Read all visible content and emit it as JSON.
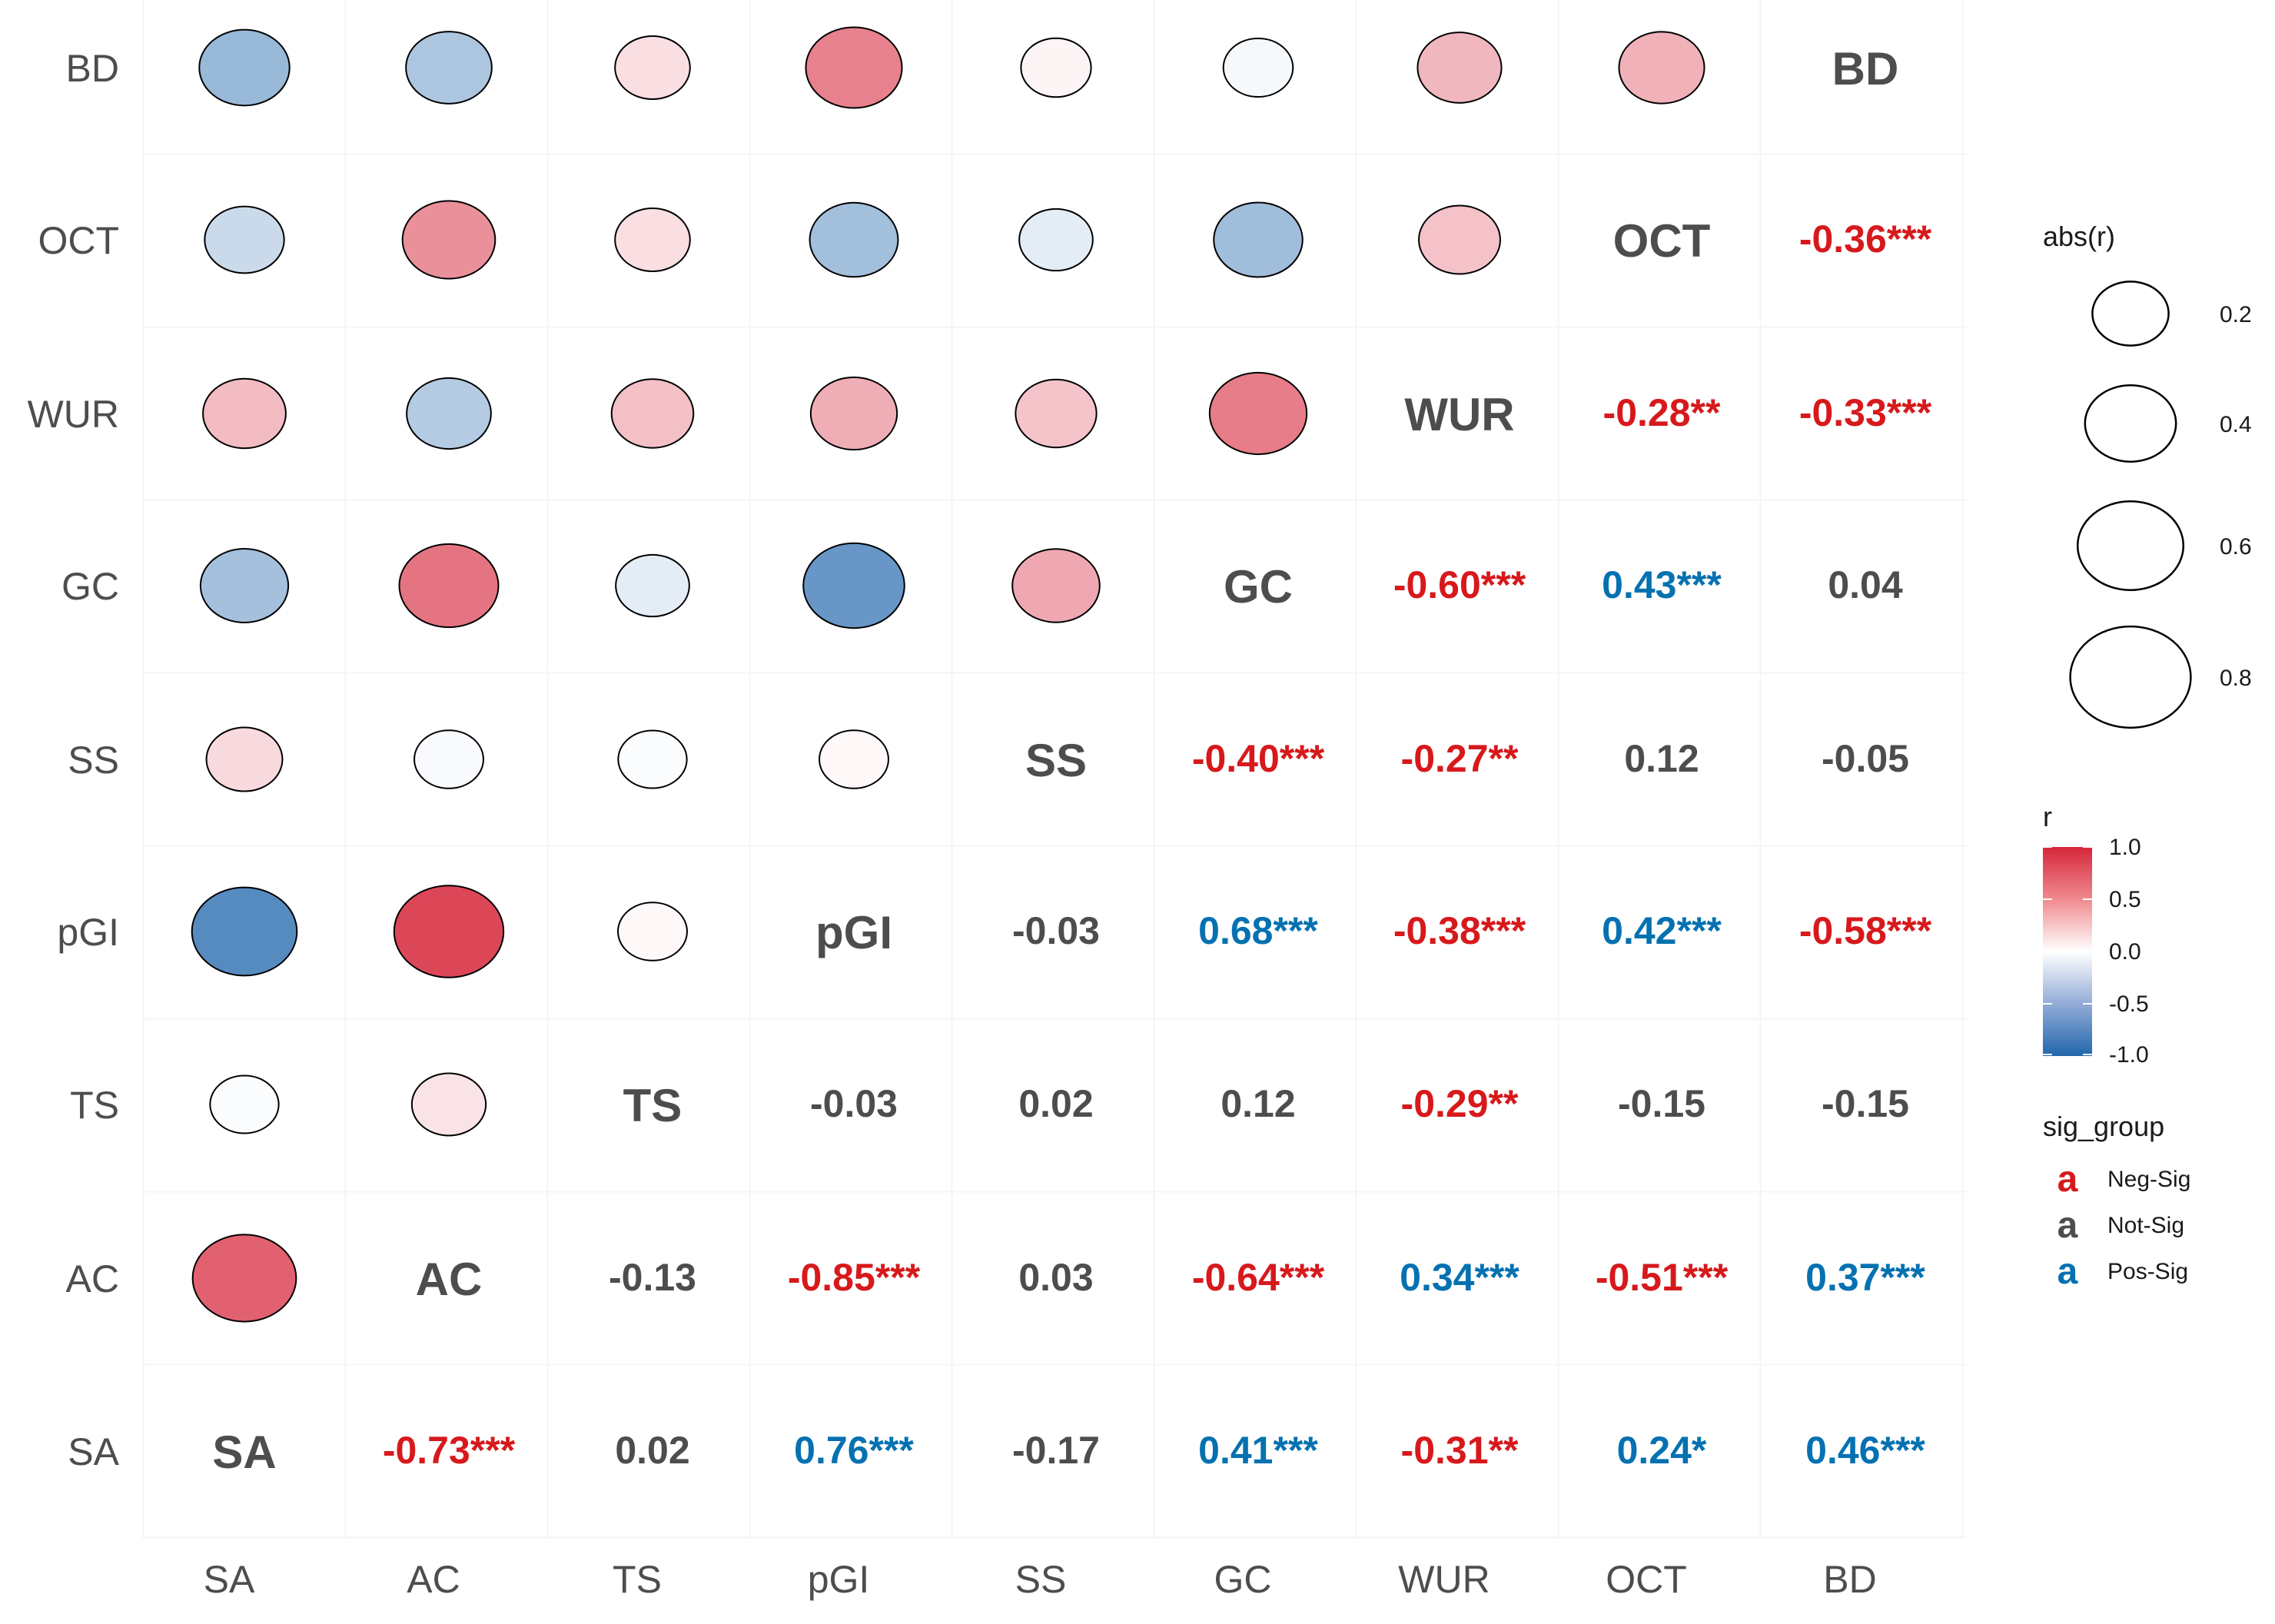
{
  "chart_data": {
    "type": "correlation-matrix",
    "variables": [
      "SA",
      "AC",
      "TS",
      "pGI",
      "SS",
      "GC",
      "WUR",
      "OCT",
      "BD"
    ],
    "lower_triangle": [
      {
        "row": "AC",
        "col": "SA",
        "r": -0.73,
        "label": "-0.73***",
        "group": "Neg-Sig"
      },
      {
        "row": "TS",
        "col": "SA",
        "r": 0.02,
        "label": "0.02",
        "group": "Not-Sig"
      },
      {
        "row": "TS",
        "col": "AC",
        "r": -0.13,
        "label": "-0.13",
        "group": "Not-Sig"
      },
      {
        "row": "pGI",
        "col": "SA",
        "r": 0.76,
        "label": "0.76***",
        "group": "Pos-Sig"
      },
      {
        "row": "pGI",
        "col": "AC",
        "r": -0.85,
        "label": "-0.85***",
        "group": "Neg-Sig"
      },
      {
        "row": "pGI",
        "col": "TS",
        "r": -0.03,
        "label": "-0.03",
        "group": "Not-Sig"
      },
      {
        "row": "SS",
        "col": "SA",
        "r": -0.17,
        "label": "-0.17",
        "group": "Not-Sig"
      },
      {
        "row": "SS",
        "col": "AC",
        "r": 0.03,
        "label": "0.03",
        "group": "Not-Sig"
      },
      {
        "row": "SS",
        "col": "TS",
        "r": 0.02,
        "label": "0.02",
        "group": "Not-Sig"
      },
      {
        "row": "SS",
        "col": "pGI",
        "r": -0.03,
        "label": "-0.03",
        "group": "Not-Sig"
      },
      {
        "row": "GC",
        "col": "SA",
        "r": 0.41,
        "label": "0.41***",
        "group": "Pos-Sig"
      },
      {
        "row": "GC",
        "col": "AC",
        "r": -0.64,
        "label": "-0.64***",
        "group": "Neg-Sig"
      },
      {
        "row": "GC",
        "col": "TS",
        "r": 0.12,
        "label": "0.12",
        "group": "Not-Sig"
      },
      {
        "row": "GC",
        "col": "pGI",
        "r": 0.68,
        "label": "0.68***",
        "group": "Pos-Sig"
      },
      {
        "row": "GC",
        "col": "SS",
        "r": -0.4,
        "label": "-0.40***",
        "group": "Neg-Sig"
      },
      {
        "row": "WUR",
        "col": "SA",
        "r": -0.31,
        "label": "-0.31**",
        "group": "Neg-Sig"
      },
      {
        "row": "WUR",
        "col": "AC",
        "r": 0.34,
        "label": "0.34***",
        "group": "Pos-Sig"
      },
      {
        "row": "WUR",
        "col": "TS",
        "r": -0.29,
        "label": "-0.29**",
        "group": "Neg-Sig"
      },
      {
        "row": "WUR",
        "col": "pGI",
        "r": -0.38,
        "label": "-0.38***",
        "group": "Neg-Sig"
      },
      {
        "row": "WUR",
        "col": "SS",
        "r": -0.27,
        "label": "-0.27**",
        "group": "Neg-Sig"
      },
      {
        "row": "WUR",
        "col": "GC",
        "r": -0.6,
        "label": "-0.60***",
        "group": "Neg-Sig"
      },
      {
        "row": "OCT",
        "col": "SA",
        "r": 0.24,
        "label": "0.24*",
        "group": "Pos-Sig"
      },
      {
        "row": "OCT",
        "col": "AC",
        "r": -0.51,
        "label": "-0.51***",
        "group": "Neg-Sig"
      },
      {
        "row": "OCT",
        "col": "TS",
        "r": -0.15,
        "label": "-0.15",
        "group": "Not-Sig"
      },
      {
        "row": "OCT",
        "col": "pGI",
        "r": 0.42,
        "label": "0.42***",
        "group": "Pos-Sig"
      },
      {
        "row": "OCT",
        "col": "SS",
        "r": 0.12,
        "label": "0.12",
        "group": "Not-Sig"
      },
      {
        "row": "OCT",
        "col": "GC",
        "r": 0.43,
        "label": "0.43***",
        "group": "Pos-Sig"
      },
      {
        "row": "OCT",
        "col": "WUR",
        "r": -0.28,
        "label": "-0.28**",
        "group": "Neg-Sig"
      },
      {
        "row": "BD",
        "col": "SA",
        "r": 0.46,
        "label": "0.46***",
        "group": "Pos-Sig"
      },
      {
        "row": "BD",
        "col": "AC",
        "r": 0.37,
        "label": "0.37***",
        "group": "Pos-Sig"
      },
      {
        "row": "BD",
        "col": "TS",
        "r": -0.15,
        "label": "-0.15",
        "group": "Not-Sig"
      },
      {
        "row": "BD",
        "col": "pGI",
        "r": -0.58,
        "label": "-0.58***",
        "group": "Neg-Sig"
      },
      {
        "row": "BD",
        "col": "SS",
        "r": -0.05,
        "label": "-0.05",
        "group": "Not-Sig"
      },
      {
        "row": "BD",
        "col": "GC",
        "r": 0.04,
        "label": "0.04",
        "group": "Not-Sig"
      },
      {
        "row": "BD",
        "col": "WUR",
        "r": -0.33,
        "label": "-0.33***",
        "group": "Neg-Sig"
      },
      {
        "row": "BD",
        "col": "OCT",
        "r": -0.36,
        "label": "-0.36***",
        "group": "Neg-Sig"
      }
    ],
    "circle_value": "negated r (upper triangle glyph shows sign-flipped correlation)",
    "legend": {
      "size_title": "abs(r)",
      "size_breaks": [
        0.2,
        0.4,
        0.6,
        0.8
      ],
      "size_labels": [
        "0.2",
        "0.4",
        "0.6",
        "0.8"
      ],
      "color_title": "r",
      "color_ticks": [
        "1.0",
        "0.5",
        "0.0",
        "-0.5",
        "-1.0"
      ],
      "color_range": [
        -1.0,
        1.0
      ],
      "sig_title": "sig_group",
      "sig_glyph": "a",
      "sig_entries": [
        {
          "label": "Neg-Sig",
          "color": "#d7191c"
        },
        {
          "label": "Not-Sig",
          "color": "#4d4d4d"
        },
        {
          "label": "Pos-Sig",
          "color": "#0571b0"
        }
      ]
    },
    "colors": {
      "neg_sig": "#d7191c",
      "not_sig": "#4d4d4d",
      "pos_sig": "#0571b0",
      "scale_low": "#2166ac",
      "scale_mid": "#ffffff",
      "scale_high": "#d6263b"
    }
  }
}
